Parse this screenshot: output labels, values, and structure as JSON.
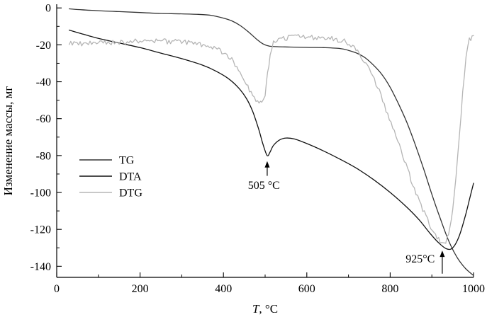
{
  "figure": {
    "background": "#ffffff"
  },
  "chart_data": {
    "type": "line",
    "title": "",
    "xlabel": "T, °C",
    "ylabel": "Изменение массы, мг",
    "xlim": [
      0,
      1000
    ],
    "ylim": [
      -146,
      2
    ],
    "x_major_ticks": [
      0,
      200,
      400,
      600,
      800,
      1000
    ],
    "x_minor_step": 100,
    "y_major_ticks": [
      0,
      -20,
      -40,
      -60,
      -80,
      -100,
      -120,
      -140
    ],
    "y_minor_step": 10,
    "grid": false,
    "legend_position": "inside-left",
    "axis_color": "#000000",
    "series": [
      {
        "name": "TG",
        "color": "#333333",
        "noise": 0,
        "points": [
          [
            30,
            -0.5
          ],
          [
            60,
            -1
          ],
          [
            100,
            -1.5
          ],
          [
            150,
            -2
          ],
          [
            200,
            -2.5
          ],
          [
            250,
            -3
          ],
          [
            300,
            -3.2
          ],
          [
            340,
            -3.5
          ],
          [
            370,
            -4
          ],
          [
            400,
            -5.5
          ],
          [
            420,
            -7
          ],
          [
            440,
            -9.5
          ],
          [
            460,
            -13
          ],
          [
            480,
            -17
          ],
          [
            495,
            -19.5
          ],
          [
            510,
            -20.7
          ],
          [
            530,
            -21
          ],
          [
            560,
            -21.2
          ],
          [
            600,
            -21.4
          ],
          [
            640,
            -21.5
          ],
          [
            680,
            -22
          ],
          [
            700,
            -23
          ],
          [
            720,
            -24.5
          ],
          [
            740,
            -27
          ],
          [
            760,
            -31
          ],
          [
            780,
            -36
          ],
          [
            800,
            -43
          ],
          [
            820,
            -52
          ],
          [
            840,
            -62
          ],
          [
            860,
            -74
          ],
          [
            880,
            -87
          ],
          [
            900,
            -101
          ],
          [
            920,
            -114
          ],
          [
            940,
            -126
          ],
          [
            960,
            -135
          ],
          [
            980,
            -141
          ],
          [
            1000,
            -145
          ]
        ]
      },
      {
        "name": "DTA",
        "color": "#111111",
        "noise": 0,
        "points": [
          [
            30,
            -12
          ],
          [
            60,
            -14
          ],
          [
            100,
            -16.5
          ],
          [
            150,
            -19
          ],
          [
            200,
            -21.5
          ],
          [
            250,
            -24.5
          ],
          [
            300,
            -27.5
          ],
          [
            350,
            -31
          ],
          [
            380,
            -34
          ],
          [
            410,
            -38
          ],
          [
            435,
            -43
          ],
          [
            455,
            -49
          ],
          [
            470,
            -56
          ],
          [
            485,
            -66
          ],
          [
            495,
            -74
          ],
          [
            505,
            -80
          ],
          [
            512,
            -78
          ],
          [
            520,
            -74.5
          ],
          [
            535,
            -71.5
          ],
          [
            550,
            -70.5
          ],
          [
            570,
            -71
          ],
          [
            600,
            -73.5
          ],
          [
            640,
            -77.5
          ],
          [
            680,
            -82
          ],
          [
            720,
            -87
          ],
          [
            760,
            -93
          ],
          [
            800,
            -100
          ],
          [
            840,
            -108
          ],
          [
            870,
            -115
          ],
          [
            895,
            -122
          ],
          [
            915,
            -127
          ],
          [
            935,
            -130.5
          ],
          [
            950,
            -130
          ],
          [
            965,
            -124
          ],
          [
            980,
            -113
          ],
          [
            990,
            -104
          ],
          [
            1000,
            -95
          ]
        ]
      },
      {
        "name": "DTG",
        "color": "#b5b5b5",
        "noise": 1.4,
        "points": [
          [
            30,
            -19
          ],
          [
            60,
            -19.5
          ],
          [
            100,
            -19
          ],
          [
            150,
            -18.5
          ],
          [
            200,
            -18
          ],
          [
            250,
            -18
          ],
          [
            300,
            -18.5
          ],
          [
            340,
            -19.5
          ],
          [
            370,
            -21
          ],
          [
            400,
            -24
          ],
          [
            420,
            -28
          ],
          [
            440,
            -34
          ],
          [
            455,
            -41
          ],
          [
            470,
            -48
          ],
          [
            482,
            -51.5
          ],
          [
            492,
            -52
          ],
          [
            500,
            -47
          ],
          [
            506,
            -36
          ],
          [
            512,
            -25
          ],
          [
            520,
            -19
          ],
          [
            540,
            -16.5
          ],
          [
            580,
            -15.5
          ],
          [
            620,
            -16
          ],
          [
            660,
            -16.5
          ],
          [
            690,
            -18
          ],
          [
            710,
            -21
          ],
          [
            730,
            -26
          ],
          [
            750,
            -33
          ],
          [
            770,
            -43
          ],
          [
            790,
            -55
          ],
          [
            810,
            -67
          ],
          [
            830,
            -80
          ],
          [
            850,
            -93
          ],
          [
            870,
            -105
          ],
          [
            890,
            -115
          ],
          [
            905,
            -122
          ],
          [
            920,
            -127
          ],
          [
            930,
            -128
          ],
          [
            940,
            -123
          ],
          [
            950,
            -110
          ],
          [
            958,
            -92
          ],
          [
            966,
            -70
          ],
          [
            974,
            -45
          ],
          [
            982,
            -26
          ],
          [
            990,
            -17
          ],
          [
            1000,
            -15
          ]
        ]
      }
    ],
    "annotations": [
      {
        "text": "505 °C",
        "x": 497,
        "y": -98,
        "arrow": {
          "x": 505,
          "y_from": -91,
          "y_to": -83
        }
      },
      {
        "text": "925°C",
        "x": 872,
        "y": -138,
        "arrow": {
          "x": 925,
          "y_from": -144,
          "y_to": -131.5
        }
      }
    ]
  }
}
